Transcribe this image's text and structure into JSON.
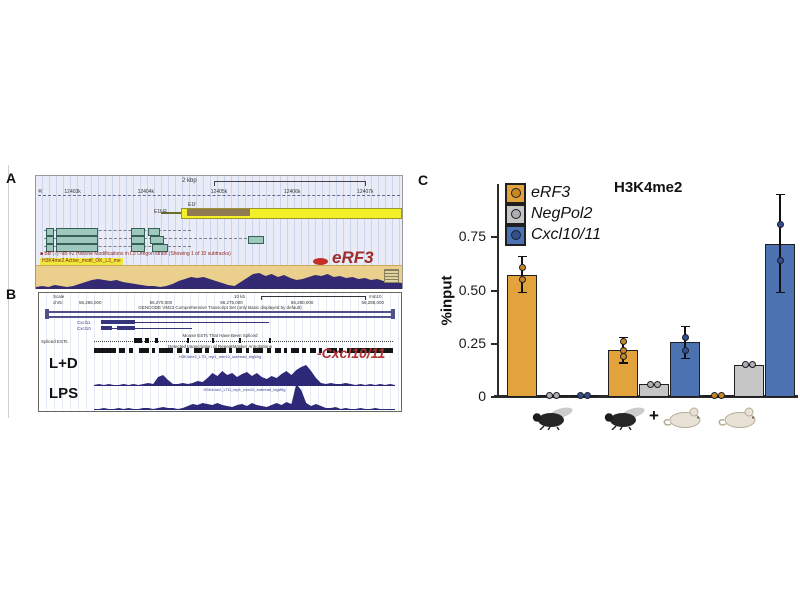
{
  "panel_a": {
    "label": "A",
    "ruler_label": "2 kbp",
    "left_arrow": "«",
    "tick_labels": [
      "12403k",
      "12404k",
      "12405k",
      "12406k",
      "12407k"
    ],
    "gene_label_top": "E1f",
    "gene_label": "E1f-R",
    "track_note": "■ BB (?)~9B #2 Histone Modifications in L3 Oregon strain (Showing 1 of 10 subtracks)",
    "track_label": "H3K4me2 Active_motif_OK_L3_me",
    "annotation": "eRF3"
  },
  "panel_b": {
    "label": "B",
    "scale_label": "Scale",
    "chrom_label": "chr5:",
    "scale_value": "10 kb",
    "assembly": "mm10",
    "coords": [
      "56,265,000",
      "56,270,000",
      "56,275,000",
      "56,280,000",
      "56,285,000"
    ],
    "gencode_title": "GENCODE VM23 Comprehensive Transcript Set (only Basic displayed by default)",
    "gene1": "Cxcl11",
    "gene2": "Cxcl10",
    "est_title": "Mouse ESTs That Have Been Spliced",
    "spliced_label": "Spliced ESTs",
    "repeat_title": "Detected transcription of RepeatMasker Annotations",
    "signal_file_label": "H3K4me2_LTD_rep1_mm10_subread_bigWig",
    "annotation": "-Cxcl10/11",
    "track1_label": "L+D",
    "track2_label": "LPS"
  },
  "panel_c": {
    "label": "C"
  },
  "chart_data": {
    "type": "bar",
    "title": "H3K4me2",
    "ylabel": "%input",
    "ylim": [
      0,
      0.98
    ],
    "yticks": [
      0,
      0.25,
      0.5,
      0.75
    ],
    "ytick_labels": [
      "0",
      "0.25",
      "0.50",
      "0.75"
    ],
    "categories": [
      "fly",
      "fly + mouse",
      "mouse"
    ],
    "plus_label": "+",
    "legend_position": "top-left",
    "grid": false,
    "series": [
      {
        "name": "eRF3",
        "color": "#E3A33C",
        "point_color": "#C8871F",
        "values": [
          0.575,
          0.22,
          0.008
        ],
        "errors": [
          [
            0.49,
            0.66
          ],
          [
            0.16,
            0.28
          ],
          null
        ],
        "points": [
          [
            0.55,
            0.61
          ],
          [
            0.19,
            0.22,
            0.26
          ],
          [
            0.004,
            0.012
          ]
        ]
      },
      {
        "name": "NegPol2",
        "color": "#C6C6C6",
        "point_color": "#AFAFAF",
        "values": [
          0.006,
          0.06,
          0.15
        ],
        "errors": [
          null,
          null,
          null
        ],
        "points": [
          [
            0.004,
            0.012
          ],
          [
            0.057,
            0.065
          ],
          [
            0.148,
            0.156
          ]
        ]
      },
      {
        "name": "Cxcl10/11",
        "color": "#4C72B2",
        "point_color": "#33508C",
        "values": [
          0.006,
          0.26,
          0.72
        ],
        "errors": [
          null,
          [
            0.18,
            0.33
          ],
          [
            0.49,
            0.95
          ]
        ],
        "points": [
          [
            0.004,
            0.012
          ],
          [
            0.22,
            0.28
          ],
          [
            0.64,
            0.81
          ]
        ]
      }
    ]
  }
}
